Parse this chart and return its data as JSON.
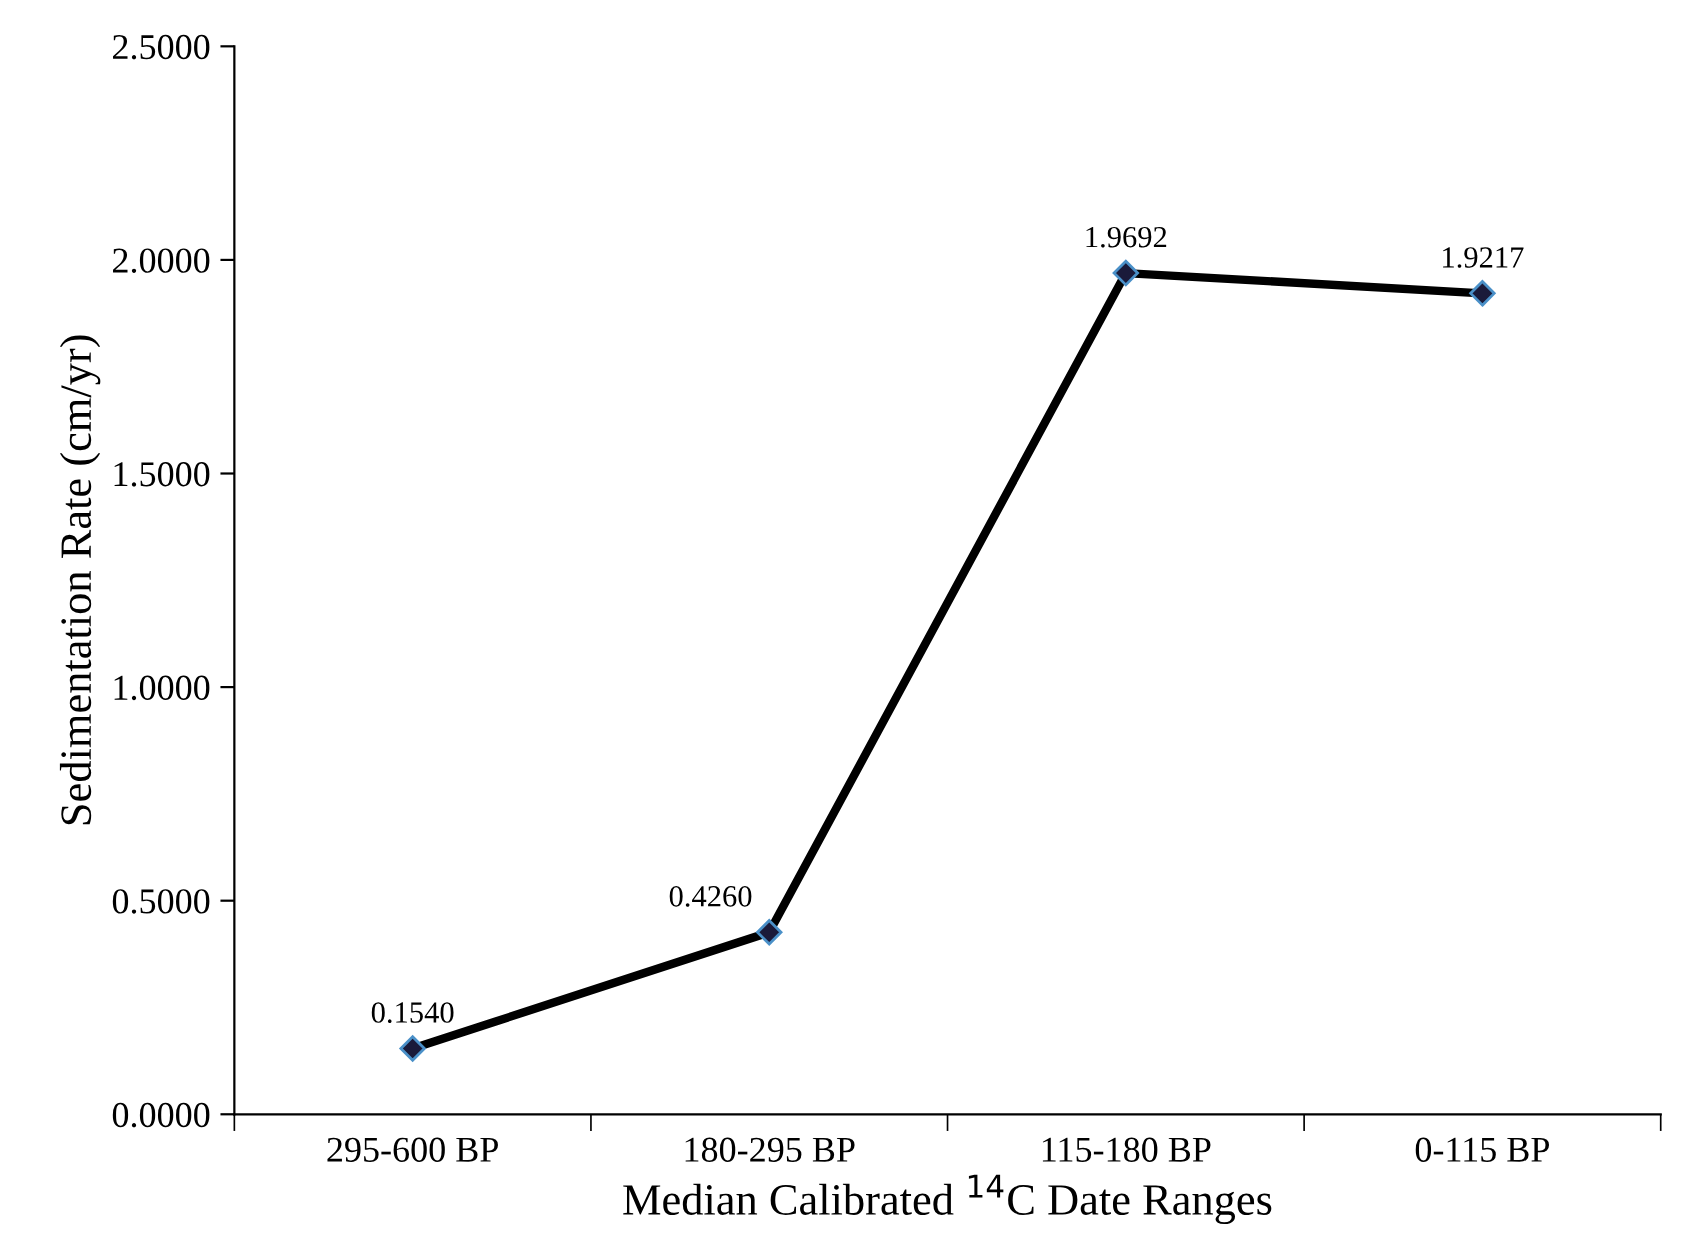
{
  "chart_data": {
    "type": "line",
    "xlabel": "Median Calibrated $^{14}$C Date Ranges",
    "ylabel": "Sedimentation Rate (cm/yr)",
    "categories": [
      "295-600 BP",
      "180-295 BP",
      "115-180 BP",
      "0-115 BP"
    ],
    "values": [
      0.154,
      0.426,
      1.9692,
      1.9217
    ],
    "value_labels": [
      "0.1540",
      "0.4260",
      "1.9692",
      "1.9217"
    ],
    "color": "#000000",
    "marker": "diamond",
    "line_style": "solid",
    "grid": false,
    "legend": false,
    "ylim": [
      0,
      2.5
    ],
    "yticks": [
      {
        "value": 0,
        "label": "0.0000"
      },
      {
        "value": 0.5,
        "label": "0.5000"
      },
      {
        "value": 1,
        "label": "1.0000"
      },
      {
        "value": 1.5,
        "label": "1.5000"
      },
      {
        "value": 2,
        "label": "2.0000"
      },
      {
        "value": 2.5,
        "label": "2.5000"
      }
    ]
  }
}
